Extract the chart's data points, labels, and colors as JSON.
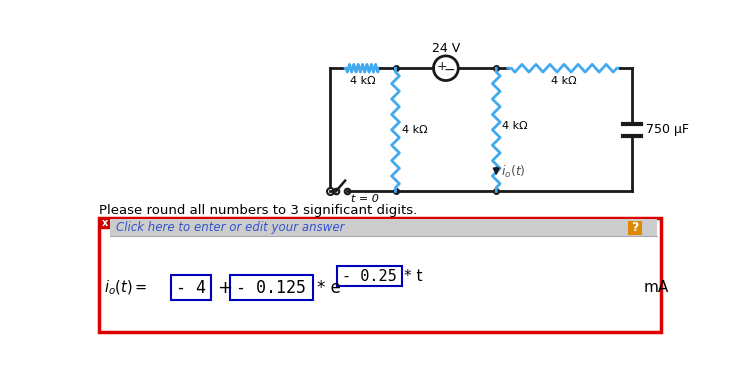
{
  "bg_color": "#ffffff",
  "text_round": "Please round all numbers to 3 significant digits.",
  "equation_lhs": "$i_o(t) =$",
  "box1_text": "- 4",
  "plus_text": "+",
  "box2_text": "- 0.125",
  "star_e_text": "* e",
  "box3_text": "- 0.25",
  "star_t_text": "* t",
  "unit_text": "mA",
  "click_text": "Click here to enter or edit your answer",
  "label_24V": "24 V",
  "label_res1": "4 kΩ",
  "label_res2": "4 kΩ",
  "label_res3": "4 kΩ",
  "label_res4": "4 kΩ",
  "label_cap": "750 μF",
  "label_switch": "t = 0",
  "label_current": "$i_o(t)$",
  "answer_box_border": "#dd0000",
  "inner_box_border": "#0000bb",
  "click_bar_bg": "#cccccc",
  "click_text_color": "#3355cc",
  "question_btn_color": "#e08800",
  "wire_color": "#1a1a1a",
  "res_color": "#44aaee",
  "x_btn_color": "#cc0000"
}
